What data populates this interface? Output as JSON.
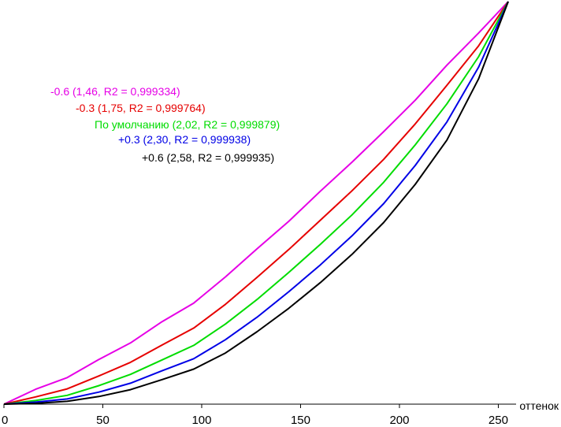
{
  "chart_data": {
    "type": "line",
    "title": "",
    "xlabel": "оттенок",
    "ylabel": "",
    "xlim": [
      0,
      255
    ],
    "ylim": [
      0,
      1
    ],
    "grid": false,
    "x_ticks": [
      0,
      50,
      100,
      150,
      200,
      250
    ],
    "x_tick_labels": [
      "0",
      "50",
      "100",
      "150",
      "200",
      "250"
    ],
    "x": [
      0,
      16,
      32,
      48,
      64,
      80,
      96,
      112,
      128,
      144,
      160,
      176,
      192,
      208,
      224,
      240,
      255
    ],
    "series": [
      {
        "name": "-0.6 (1,46, R2 = 0,999334)",
        "color": "#e600e6",
        "values": [
          0.0,
          0.037,
          0.066,
          0.111,
          0.152,
          0.205,
          0.251,
          0.316,
          0.386,
          0.454,
          0.529,
          0.601,
          0.677,
          0.755,
          0.842,
          0.922,
          1.0
        ]
      },
      {
        "name": "-0.3 (1,75, R2 = 0,999764)",
        "color": "#e60000",
        "values": [
          0.0,
          0.018,
          0.038,
          0.07,
          0.104,
          0.147,
          0.189,
          0.248,
          0.315,
          0.384,
          0.457,
          0.53,
          0.608,
          0.696,
          0.792,
          0.89,
          1.0
        ]
      },
      {
        "name": "По умолчанию (2,02, R2 = 0,999879)",
        "color": "#00dc00",
        "values": [
          0.0,
          0.009,
          0.022,
          0.046,
          0.074,
          0.11,
          0.146,
          0.199,
          0.26,
          0.327,
          0.397,
          0.47,
          0.551,
          0.644,
          0.746,
          0.863,
          1.0
        ]
      },
      {
        "name": "+0.3 (2,30, R2 = 0,999938)",
        "color": "#0000e6",
        "values": [
          0.0,
          0.005,
          0.013,
          0.03,
          0.052,
          0.083,
          0.113,
          0.16,
          0.216,
          0.279,
          0.346,
          0.418,
          0.498,
          0.593,
          0.701,
          0.837,
          1.0
        ]
      },
      {
        "name": "+0.6 (2,58, R2 = 0,999935)",
        "color": "#000000",
        "values": [
          0.0,
          0.002,
          0.007,
          0.019,
          0.036,
          0.061,
          0.087,
          0.127,
          0.18,
          0.238,
          0.302,
          0.372,
          0.451,
          0.546,
          0.656,
          0.808,
          1.0
        ]
      }
    ]
  }
}
